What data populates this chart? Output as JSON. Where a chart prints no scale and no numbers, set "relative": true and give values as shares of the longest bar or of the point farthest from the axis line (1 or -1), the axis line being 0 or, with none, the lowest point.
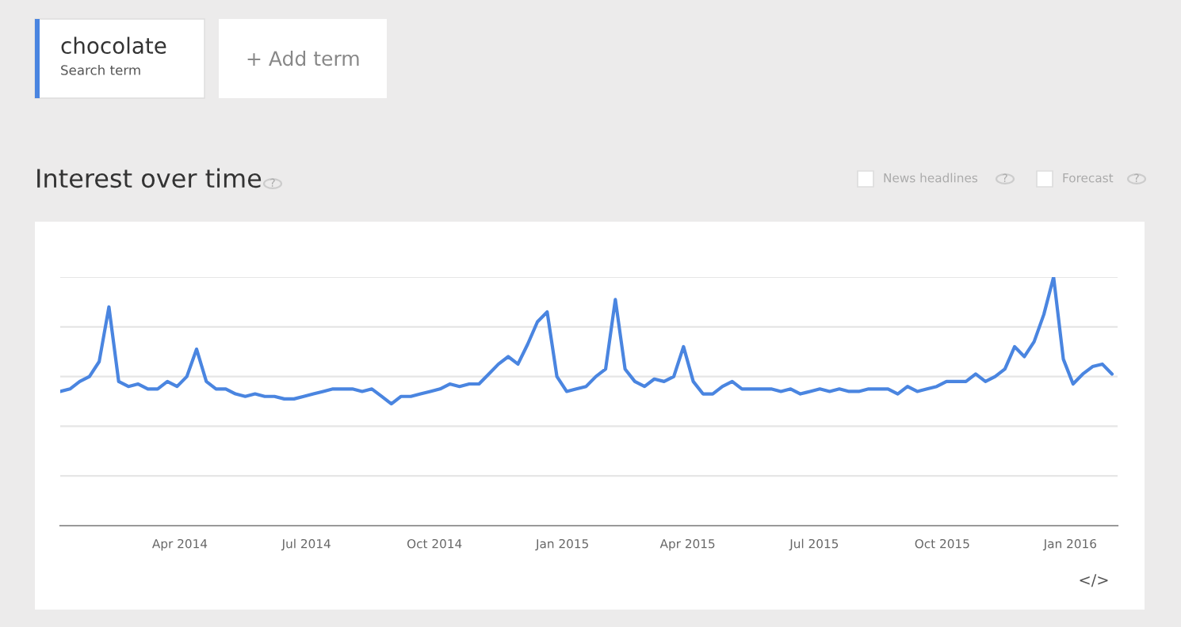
{
  "chart_data": {
    "type": "line",
    "title": "Interest over time",
    "relative": true,
    "x": [
      "2014-01-05",
      "2014-01-12",
      "2014-01-19",
      "2014-01-26",
      "2014-02-02",
      "2014-02-09",
      "2014-02-16",
      "2014-02-23",
      "2014-03-02",
      "2014-03-09",
      "2014-03-16",
      "2014-03-23",
      "2014-03-30",
      "2014-04-06",
      "2014-04-13",
      "2014-04-20",
      "2014-04-27",
      "2014-05-04",
      "2014-05-11",
      "2014-05-18",
      "2014-05-25",
      "2014-06-01",
      "2014-06-08",
      "2014-06-15",
      "2014-06-22",
      "2014-06-29",
      "2014-07-06",
      "2014-07-13",
      "2014-07-20",
      "2014-07-27",
      "2014-08-03",
      "2014-08-10",
      "2014-08-17",
      "2014-08-24",
      "2014-08-31",
      "2014-09-07",
      "2014-09-14",
      "2014-09-21",
      "2014-09-28",
      "2014-10-05",
      "2014-10-12",
      "2014-10-19",
      "2014-10-26",
      "2014-11-02",
      "2014-11-09",
      "2014-11-16",
      "2014-11-23",
      "2014-11-30",
      "2014-12-07",
      "2014-12-14",
      "2014-12-21",
      "2014-12-28",
      "2015-01-04",
      "2015-01-11",
      "2015-01-18",
      "2015-01-25",
      "2015-02-01",
      "2015-02-08",
      "2015-02-15",
      "2015-02-22",
      "2015-03-01",
      "2015-03-08",
      "2015-03-15",
      "2015-03-22",
      "2015-03-29",
      "2015-04-05",
      "2015-04-12",
      "2015-04-19",
      "2015-04-26",
      "2015-05-03",
      "2015-05-10",
      "2015-05-17",
      "2015-05-24",
      "2015-05-31",
      "2015-06-07",
      "2015-06-14",
      "2015-06-21",
      "2015-06-28",
      "2015-07-05",
      "2015-07-12",
      "2015-07-19",
      "2015-07-26",
      "2015-08-02",
      "2015-08-09",
      "2015-08-16",
      "2015-08-23",
      "2015-08-30",
      "2015-09-06",
      "2015-09-13",
      "2015-09-20",
      "2015-09-27",
      "2015-10-04",
      "2015-10-11",
      "2015-10-18",
      "2015-10-25",
      "2015-11-01",
      "2015-11-08",
      "2015-11-15",
      "2015-11-22",
      "2015-11-29",
      "2015-12-06",
      "2015-12-13",
      "2015-12-20",
      "2015-12-27",
      "2016-01-03",
      "2016-01-10",
      "2016-01-17",
      "2016-01-24",
      "2016-01-31"
    ],
    "series": [
      {
        "name": "chocolate",
        "color": "#4a85e0",
        "values": [
          0.54,
          0.55,
          0.58,
          0.6,
          0.66,
          0.88,
          0.58,
          0.56,
          0.57,
          0.55,
          0.55,
          0.58,
          0.56,
          0.6,
          0.71,
          0.58,
          0.55,
          0.55,
          0.53,
          0.52,
          0.53,
          0.52,
          0.52,
          0.51,
          0.51,
          0.52,
          0.53,
          0.54,
          0.55,
          0.55,
          0.55,
          0.54,
          0.55,
          0.52,
          0.49,
          0.52,
          0.52,
          0.53,
          0.54,
          0.55,
          0.57,
          0.56,
          0.57,
          0.57,
          0.61,
          0.65,
          0.68,
          0.65,
          0.73,
          0.82,
          0.86,
          0.6,
          0.54,
          0.55,
          0.56,
          0.6,
          0.63,
          0.91,
          0.63,
          0.58,
          0.56,
          0.59,
          0.58,
          0.6,
          0.72,
          0.58,
          0.53,
          0.53,
          0.56,
          0.58,
          0.55,
          0.55,
          0.55,
          0.55,
          0.54,
          0.55,
          0.53,
          0.54,
          0.55,
          0.54,
          0.55,
          0.54,
          0.54,
          0.55,
          0.55,
          0.55,
          0.53,
          0.56,
          0.54,
          0.55,
          0.56,
          0.58,
          0.58,
          0.58,
          0.61,
          0.58,
          0.6,
          0.63,
          0.72,
          0.68,
          0.74,
          0.85,
          1,
          0.67,
          0.57,
          0.61,
          0.64,
          0.65,
          0.61
        ]
      }
    ],
    "xlim": [
      "2014-01-05",
      "2016-02-04"
    ],
    "xticks": [
      {
        "value": "2014-04-01",
        "label": "Apr 2014"
      },
      {
        "value": "2014-07-01",
        "label": "Jul 2014"
      },
      {
        "value": "2014-10-01",
        "label": "Oct 2014"
      },
      {
        "value": "2015-01-01",
        "label": "Jan 2015"
      },
      {
        "value": "2015-04-01",
        "label": "Apr 2015"
      },
      {
        "value": "2015-07-01",
        "label": "Jul 2015"
      },
      {
        "value": "2015-10-01",
        "label": "Oct 2015"
      },
      {
        "value": "2016-01-01",
        "label": "Jan 2016"
      }
    ],
    "grid": "y",
    "legend": "top left",
    "marker": "none",
    "line_style": "solid",
    "annotations": [
      "Search term",
      "+ Add term",
      "News headlines",
      "Forecast",
      "?",
      "?",
      "?",
      "</>"
    ]
  }
}
